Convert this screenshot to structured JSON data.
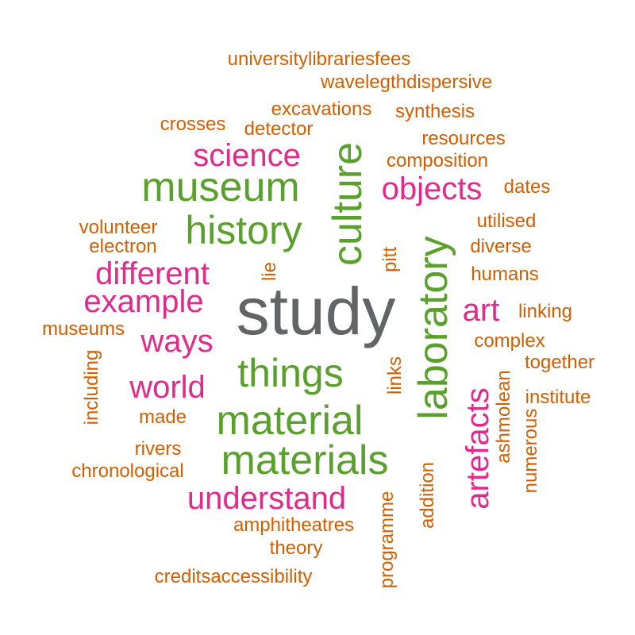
{
  "colors": {
    "tier1": "#636466",
    "tier2": "#5AA02C",
    "tier3": "#E02B8A",
    "tier4": "#D45E00"
  },
  "words": [
    {
      "text": "study",
      "tier": "tier1",
      "vertical": false
    },
    {
      "text": "museum",
      "tier": "tier2",
      "vertical": false
    },
    {
      "text": "history",
      "tier": "tier2",
      "vertical": false
    },
    {
      "text": "culture",
      "tier": "tier2",
      "vertical": true
    },
    {
      "text": "laboratory",
      "tier": "tier2",
      "vertical": true
    },
    {
      "text": "things",
      "tier": "tier2",
      "vertical": false
    },
    {
      "text": "material",
      "tier": "tier2",
      "vertical": false
    },
    {
      "text": "materials",
      "tier": "tier2",
      "vertical": false
    },
    {
      "text": "science",
      "tier": "tier3",
      "vertical": false
    },
    {
      "text": "objects",
      "tier": "tier3",
      "vertical": false
    },
    {
      "text": "different",
      "tier": "tier3",
      "vertical": false
    },
    {
      "text": "example",
      "tier": "tier3",
      "vertical": false
    },
    {
      "text": "ways",
      "tier": "tier3",
      "vertical": false
    },
    {
      "text": "world",
      "tier": "tier3",
      "vertical": false
    },
    {
      "text": "art",
      "tier": "tier3",
      "vertical": false
    },
    {
      "text": "artefacts",
      "tier": "tier3",
      "vertical": true
    },
    {
      "text": "understand",
      "tier": "tier3",
      "vertical": false
    },
    {
      "text": "universitylibrariesfees",
      "tier": "tier4",
      "vertical": false
    },
    {
      "text": "wavelegthdispersive",
      "tier": "tier4",
      "vertical": false
    },
    {
      "text": "excavations",
      "tier": "tier4",
      "vertical": false
    },
    {
      "text": "synthesis",
      "tier": "tier4",
      "vertical": false
    },
    {
      "text": "crosses",
      "tier": "tier4",
      "vertical": false
    },
    {
      "text": "detector",
      "tier": "tier4",
      "vertical": false
    },
    {
      "text": "resources",
      "tier": "tier4",
      "vertical": false
    },
    {
      "text": "composition",
      "tier": "tier4",
      "vertical": false
    },
    {
      "text": "dates",
      "tier": "tier4",
      "vertical": false
    },
    {
      "text": "utilised",
      "tier": "tier4",
      "vertical": false
    },
    {
      "text": "volunteer",
      "tier": "tier4",
      "vertical": false
    },
    {
      "text": "electron",
      "tier": "tier4",
      "vertical": false
    },
    {
      "text": "diverse",
      "tier": "tier4",
      "vertical": false
    },
    {
      "text": "humans",
      "tier": "tier4",
      "vertical": false
    },
    {
      "text": "lie",
      "tier": "tier4",
      "vertical": true
    },
    {
      "text": "pitt",
      "tier": "tier4",
      "vertical": true
    },
    {
      "text": "linking",
      "tier": "tier4",
      "vertical": false
    },
    {
      "text": "museums",
      "tier": "tier4",
      "vertical": false
    },
    {
      "text": "complex",
      "tier": "tier4",
      "vertical": false
    },
    {
      "text": "together",
      "tier": "tier4",
      "vertical": false
    },
    {
      "text": "including",
      "tier": "tier4",
      "vertical": true
    },
    {
      "text": "links",
      "tier": "tier4",
      "vertical": true
    },
    {
      "text": "institute",
      "tier": "tier4",
      "vertical": false
    },
    {
      "text": "ashmolean",
      "tier": "tier4",
      "vertical": true
    },
    {
      "text": "made",
      "tier": "tier4",
      "vertical": false
    },
    {
      "text": "numerous",
      "tier": "tier4",
      "vertical": true
    },
    {
      "text": "rivers",
      "tier": "tier4",
      "vertical": false
    },
    {
      "text": "chronological",
      "tier": "tier4",
      "vertical": false
    },
    {
      "text": "addition",
      "tier": "tier4",
      "vertical": true
    },
    {
      "text": "programme",
      "tier": "tier4",
      "vertical": true
    },
    {
      "text": "amphitheatres",
      "tier": "tier4",
      "vertical": false
    },
    {
      "text": "theory",
      "tier": "tier4",
      "vertical": false
    },
    {
      "text": "creditsaccessibility",
      "tier": "tier4",
      "vertical": false
    }
  ]
}
